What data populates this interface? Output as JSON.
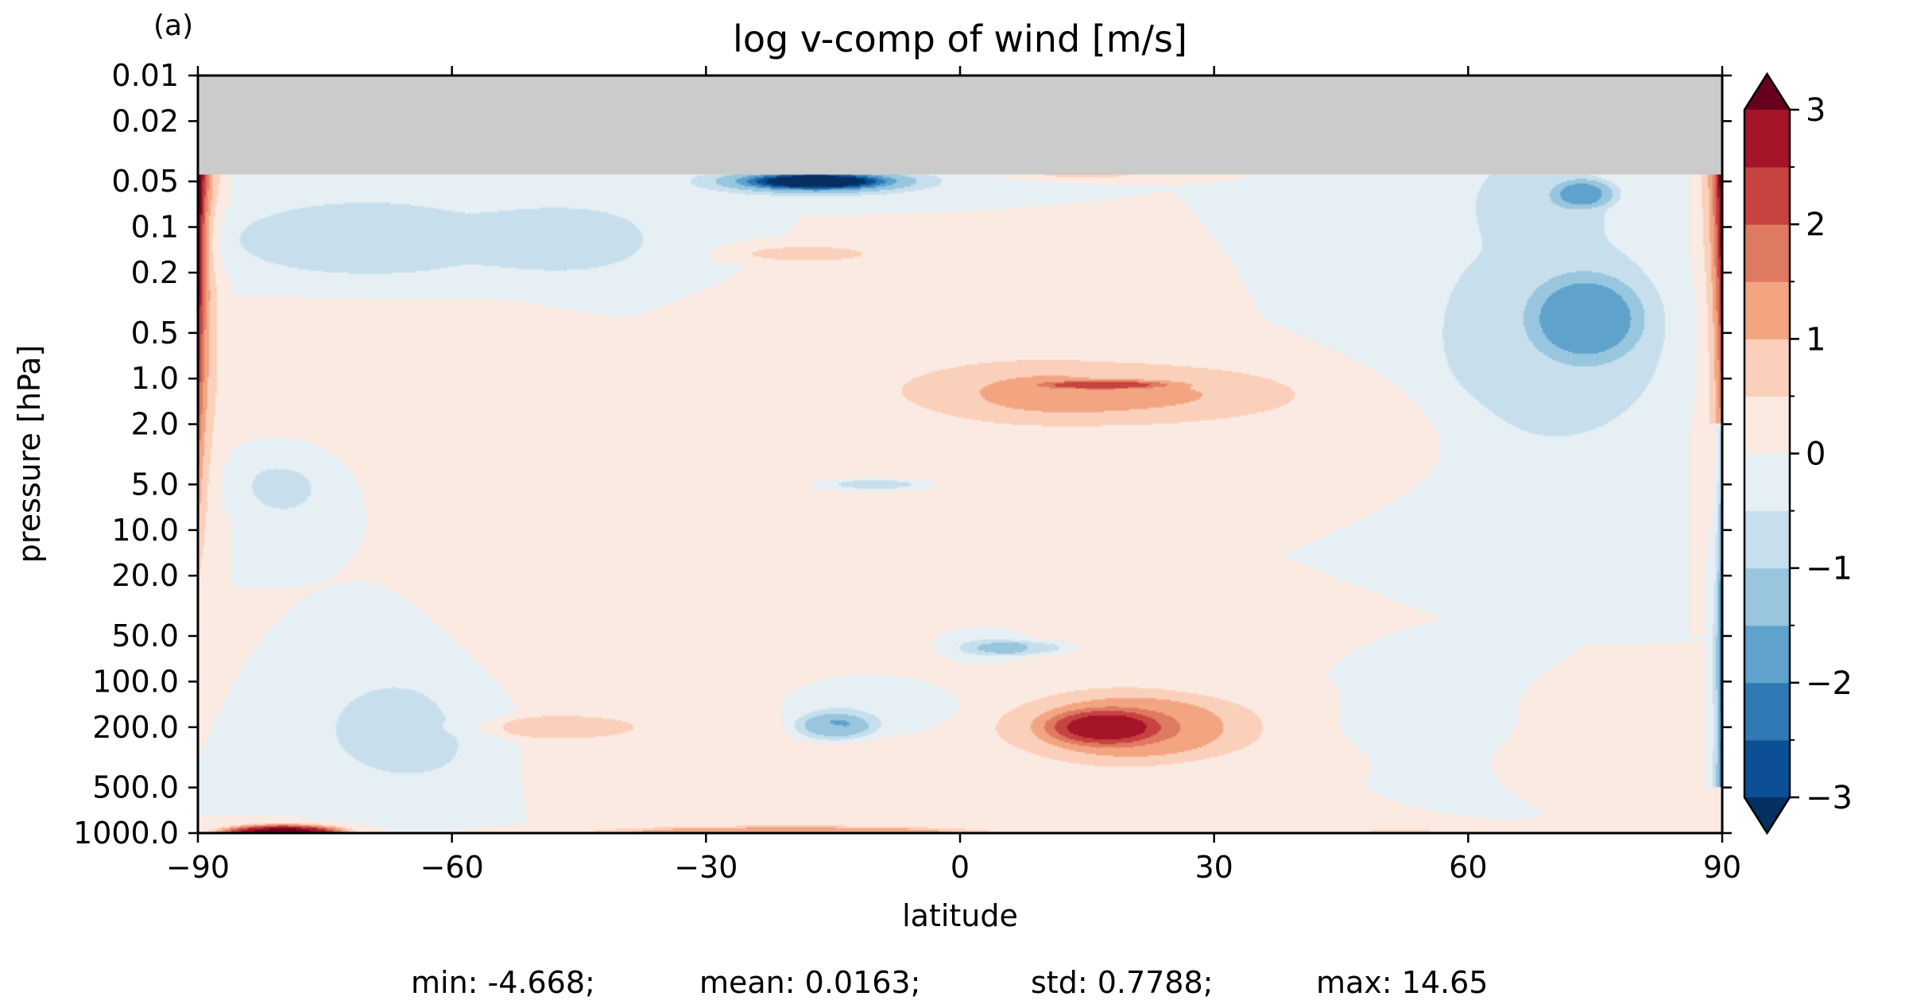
{
  "panel_label": "(a)",
  "stats": {
    "min": "min: -4.668;",
    "mean": "mean: 0.0163;",
    "std": "std: 0.7788;",
    "max": "max: 14.65"
  },
  "chart_data": {
    "type": "heatmap",
    "subtype": "filled-contour",
    "title": "log v-comp of wind [m/s]",
    "xlabel": "latitude",
    "ylabel": "pressure [hPa]",
    "x_ticks": [
      -90,
      -60,
      -30,
      0,
      30,
      60,
      90
    ],
    "x_tick_labels": [
      "−90",
      "−60",
      "−30",
      "0",
      "30",
      "60",
      "90"
    ],
    "xlim": [
      -90,
      90
    ],
    "y_scale": "log",
    "y_inverted": true,
    "y_ticks": [
      0.01,
      0.02,
      0.05,
      0.1,
      0.2,
      0.5,
      1.0,
      2.0,
      5.0,
      10.0,
      20.0,
      50.0,
      100.0,
      200.0,
      500.0,
      1000.0
    ],
    "y_tick_labels": [
      "0.01",
      "0.02",
      "0.05",
      "0.1",
      "0.2",
      "0.5",
      "1.0",
      "2.0",
      "5.0",
      "10.0",
      "20.0",
      "50.0",
      "100.0",
      "200.0",
      "500.0",
      "1000.0"
    ],
    "ylim": [
      0.01,
      1000
    ],
    "grid": false,
    "no_data_region": {
      "pressure_top": 0.01,
      "pressure_bottom": 0.045,
      "color": "#cbcbcb"
    },
    "colorbar": {
      "levels": [
        -3,
        -2.5,
        -2,
        -1.5,
        -1,
        -0.5,
        0,
        0.5,
        1,
        1.5,
        2,
        2.5,
        3
      ],
      "colors": [
        "#0d4f94",
        "#2f79b5",
        "#5fa2cb",
        "#98c6df",
        "#c7dfed",
        "#e6eff4",
        "#fbeae1",
        "#fad0bb",
        "#f3a582",
        "#df7a62",
        "#c64340",
        "#a51429"
      ],
      "under_color": "#053061",
      "over_color": "#67001f",
      "extend": "both",
      "tick_values": [
        -3,
        -2,
        -1,
        0,
        1,
        2,
        3
      ],
      "tick_labels": [
        "−3",
        "−2",
        "−1",
        "0",
        "1",
        "2",
        "3"
      ]
    },
    "features": [
      {
        "lat": -5.0,
        "p": 1.0,
        "v": 0.3,
        "rx": 22,
        "rdec": 0.5
      },
      {
        "lat": 10.0,
        "p": 200.0,
        "v": 0.3,
        "rx": 28,
        "rdec": 0.5
      },
      {
        "lat": 30.0,
        "p": 2.0,
        "v": 0.3,
        "rx": 30,
        "rdec": 0.35
      },
      {
        "lat": 45.0,
        "p": 200.0,
        "v": 0.3,
        "rx": 45,
        "rdec": 0.25
      },
      {
        "lat": -72.0,
        "p": 1.0,
        "v": 0.2,
        "rx": 20,
        "rdec": 0.6
      },
      {
        "lat": -40.0,
        "p": 150.0,
        "v": 0.2,
        "rx": 28,
        "rdec": 0.45
      },
      {
        "lat": -70.0,
        "p": 0.12,
        "v": -0.65,
        "rx": 22,
        "rdec": 0.35
      },
      {
        "lat": -45.0,
        "p": 0.12,
        "v": -0.6,
        "rx": 12,
        "rdec": 0.3
      },
      {
        "lat": -80.0,
        "p": 5.0,
        "v": -0.55,
        "rx": 7,
        "rdec": 0.3
      },
      {
        "lat": -65.0,
        "p": 200.0,
        "v": -0.65,
        "rx": 13,
        "rdec": 0.45
      },
      {
        "lat": -10.0,
        "p": 150.0,
        "v": -0.7,
        "rx": 11,
        "rdec": 0.2
      },
      {
        "lat": 3.0,
        "p": 60.0,
        "v": -0.55,
        "rx": 5,
        "rdec": 0.1
      },
      {
        "lat": 55.0,
        "p": 180.0,
        "v": -0.6,
        "rx": 12,
        "rdec": 0.3
      },
      {
        "lat": 70.0,
        "p": 0.5,
        "v": -0.75,
        "rx": 17,
        "rdec": 0.9
      },
      {
        "lat": 68.0,
        "p": 0.06,
        "v": -0.6,
        "rx": 9,
        "rdec": 0.35
      },
      {
        "lat": -17.0,
        "p": 0.07,
        "v": 0.0,
        "rx": 19,
        "rdec": 0.3
      },
      {
        "lat": 74.0,
        "p": 0.4,
        "v": -1.2,
        "rx": 7,
        "rdec": 0.3
      },
      {
        "lat": 74.0,
        "p": 0.06,
        "v": -1.1,
        "rx": 4,
        "rdec": 0.1
      },
      {
        "lat": -17.0,
        "p": 0.05,
        "v": -1.6,
        "rx": 15,
        "rdec": 0.1
      },
      {
        "lat": -17.0,
        "p": 0.05,
        "v": -2.1,
        "rx": 8,
        "rdec": 0.05
      },
      {
        "lat": -18.0,
        "p": 0.15,
        "v": 0.7,
        "rx": 9,
        "rdec": 0.06
      },
      {
        "lat": 17.0,
        "p": 1.2,
        "v": 0.8,
        "rx": 23,
        "rdec": 0.22
      },
      {
        "lat": 17.0,
        "p": 1.1,
        "v": 1.3,
        "rx": 8,
        "rdec": 0.03
      },
      {
        "lat": 20.0,
        "p": 200.0,
        "v": 0.95,
        "rx": 13,
        "rdec": 0.25
      },
      {
        "lat": 17.0,
        "p": 200.0,
        "v": 1.35,
        "rx": 7,
        "rdec": 0.12
      },
      {
        "lat": -48.0,
        "p": 200.0,
        "v": 0.8,
        "rx": 10,
        "rdec": 0.08
      },
      {
        "lat": -15.0,
        "p": 200.0,
        "v": -1.2,
        "rx": 5,
        "rdec": 0.1
      },
      {
        "lat": -10.0,
        "p": 5.0,
        "v": -1.0,
        "rx": 5,
        "rdec": 0.03
      },
      {
        "lat": 7.0,
        "p": 60.0,
        "v": -0.9,
        "rx": 6,
        "rdec": 0.05
      },
      {
        "lat": -20.0,
        "p": 1000.0,
        "v": 1.5,
        "rx": 25,
        "rdec": 0.05
      },
      {
        "lat": -80.0,
        "p": 1000.0,
        "v": 3.2,
        "rx": 8,
        "rdec": 0.06
      },
      {
        "lat": 52.0,
        "p": 1000.0,
        "v": 0.8,
        "rx": 6,
        "rdec": 0.03
      },
      {
        "lat": 15.0,
        "p": 0.045,
        "v": 0.6,
        "rx": 8,
        "rdec": 0.03
      }
    ]
  }
}
